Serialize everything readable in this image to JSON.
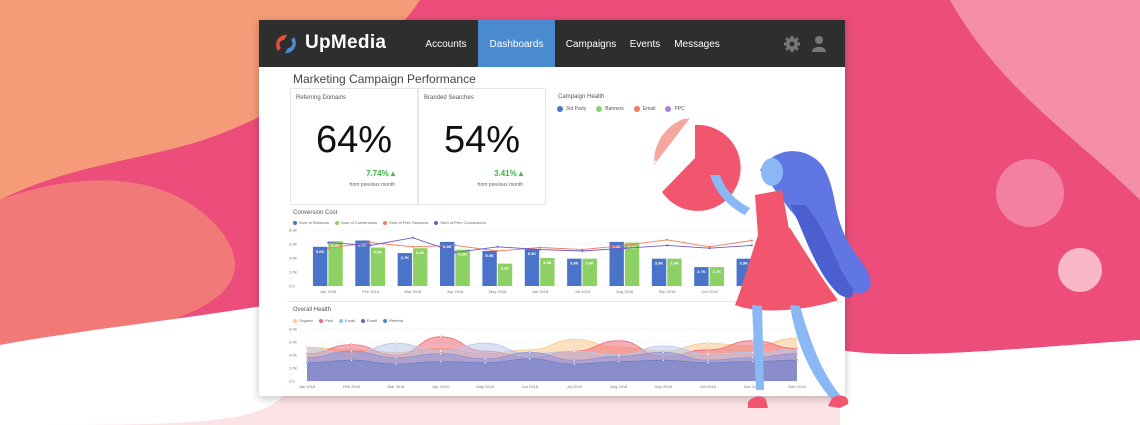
{
  "app": {
    "brand": "UpMedia"
  },
  "nav": [
    {
      "label": "Accounts"
    },
    {
      "label": "Dashboards",
      "active": true
    },
    {
      "label": "Campaigns"
    },
    {
      "label": "Events"
    },
    {
      "label": "Messages"
    }
  ],
  "page": {
    "title": "Marketing Campaign Performance"
  },
  "cards": {
    "referring": {
      "label": "Referring Domains",
      "value": "64%",
      "delta": "7.74%",
      "sub": "from previous month"
    },
    "branded": {
      "label": "Branded Searches",
      "value": "54%",
      "delta": "3.41%",
      "sub": "from previous month"
    },
    "health": {
      "label": "Campaign Health",
      "legend": [
        "3rd Party",
        "Banners",
        "Email",
        "PPC"
      ]
    }
  },
  "colors": {
    "accent": "#4a8bd0",
    "blue_bar": "#4a74c9",
    "green_bar": "#8dd164",
    "positive": "#3cb44b",
    "pink_bg": "#ee4f7c",
    "orange_bg": "#f6a07a"
  },
  "conversion": {
    "title": "Conversion Cost",
    "legend": [
      "Sum of Sessions",
      "Sum of Conversions",
      "Sum of Prev Sessions",
      "Sum of Prev Conversions"
    ],
    "yticks": [
      "8.0K",
      "6.0K",
      "4.0K",
      "2.0K",
      "0.0"
    ],
    "categories": [
      "Jan 2018",
      "Feb 2018",
      "Mar 2018",
      "Apr 2018",
      "May 2018",
      "Jun 2018",
      "Jul 2018",
      "Aug 2018",
      "Sep 2018",
      "Oct 2018",
      "Nov 2018"
    ]
  },
  "chart_data": [
    {
      "type": "bar",
      "title": "Conversion Cost",
      "categories": [
        "Jan 2018",
        "Feb 2018",
        "Mar 2018",
        "Apr 2018",
        "May 2018",
        "Jun 2018",
        "Jul 2018",
        "Aug 2018",
        "Sep 2018",
        "Oct 2018",
        "Nov 2018"
      ],
      "ylim": [
        0,
        8
      ],
      "series": [
        {
          "name": "Sum of Sessions",
          "values": [
            5.6,
            6.5,
            4.7,
            6.3,
            5.0,
            5.3,
            3.9,
            6.3,
            3.9,
            2.7,
            3.9
          ],
          "labels": [
            "5.6K",
            "6.5K",
            "4.7K",
            "6.3K",
            "5.0K",
            "5.3K",
            "3.9K",
            "6.3K",
            "3.9K",
            "2.7K",
            "3.9K"
          ]
        },
        {
          "name": "Sum of Conversions",
          "values": [
            6.4,
            5.5,
            5.4,
            5.2,
            3.2,
            4.0,
            3.9,
            6.2,
            3.9,
            2.7,
            3.9
          ],
          "labels": [
            "6.4K",
            "5.5K",
            "5.4K",
            "5.2K",
            "3.2K",
            "4.0K",
            "3.9K",
            "6.2K",
            "3.9K",
            "2.7K",
            ""
          ]
        },
        {
          "name": "Sum of Prev Sessions",
          "values": [
            5.4,
            6.2,
            5.6,
            5.8,
            5.0,
            5.5,
            5.2,
            5.8,
            6.6,
            5.6,
            6.5
          ]
        },
        {
          "name": "Sum of Prev Conversions",
          "values": [
            6.2,
            5.8,
            6.9,
            4.8,
            5.6,
            5.2,
            5.0,
            5.4,
            5.8,
            5.4,
            5.8
          ]
        }
      ]
    },
    {
      "type": "area",
      "title": "Overall Health",
      "categories": [
        "Jan 2018",
        "Feb 2018",
        "Mar 2018",
        "Apr 2018",
        "May 2018",
        "Jun 2018",
        "Jul 2018",
        "Aug 2018",
        "Sep 2018",
        "Oct 2018",
        "Nov 2018",
        "Dec 2018"
      ],
      "yticks": [
        "8.0K",
        "6.0K",
        "4.0K",
        "2.0K",
        "0.0"
      ],
      "ylim": [
        0,
        8
      ],
      "series": [
        {
          "name": "Organic",
          "color": "#f7c98a",
          "values": [
            5.2,
            4.8,
            4.4,
            5.0,
            4.2,
            4.8,
            6.4,
            5.2,
            4.6,
            5.8,
            5.4,
            6.6
          ]
        },
        {
          "name": "Paid",
          "color": "#ef6b7a",
          "values": [
            4.2,
            5.6,
            4.0,
            6.8,
            4.6,
            3.6,
            4.6,
            6.2,
            3.8,
            4.8,
            6.2,
            5.0
          ]
        },
        {
          "name": "Email",
          "color": "#b8c7e8",
          "values": [
            5.0,
            4.2,
            5.8,
            4.6,
            5.8,
            4.2,
            4.6,
            4.0,
            5.4,
            4.2,
            4.4,
            4.8
          ]
        },
        {
          "name": "Email",
          "color": "#8f8fd6",
          "values": [
            3.6,
            4.6,
            3.6,
            4.2,
            3.4,
            4.4,
            3.2,
            3.8,
            4.4,
            3.2,
            3.6,
            4.2
          ]
        },
        {
          "name": "Referral",
          "color": "#6c7fc9",
          "values": [
            2.8,
            3.2,
            2.6,
            3.0,
            2.8,
            3.4,
            2.6,
            3.0,
            3.2,
            2.8,
            3.0,
            3.2
          ]
        }
      ]
    }
  ],
  "health_chart": {
    "title": "Overall Health",
    "legend": [
      "Organic",
      "Paid",
      "Email",
      "Email",
      "Referral"
    ],
    "yticks": [
      "8.0K",
      "6.0K",
      "4.0K",
      "2.0K",
      "0.0"
    ],
    "categories": [
      "Jan 2018",
      "Feb 2018",
      "Mar 2018",
      "Apr 2018",
      "May 2018",
      "Jun 2018",
      "Jul 2018",
      "Aug 2018",
      "Sep 2018",
      "Oct 2018",
      "Nov 2018",
      "Dec 2018"
    ]
  },
  "icons": {
    "logo": "upmedia-logo-icon",
    "settings": "gear-icon",
    "user": "user-icon"
  }
}
